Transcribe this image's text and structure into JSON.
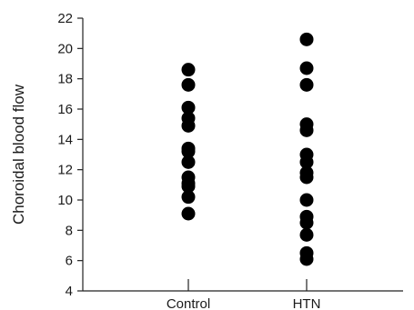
{
  "chart_data": {
    "type": "scatter",
    "title": "",
    "xlabel": "",
    "ylabel": "Choroidal blood flow",
    "categories": [
      "Control",
      "HTN"
    ],
    "ylim": [
      4,
      22
    ],
    "yticks": [
      4,
      6,
      8,
      10,
      12,
      14,
      16,
      18,
      20,
      22
    ],
    "grid": false,
    "legend": "none",
    "marker_color": "#000000",
    "series": [
      {
        "category": "Control",
        "values": [
          18.6,
          17.6,
          16.1,
          15.4,
          14.9,
          13.4,
          13.2,
          12.5,
          11.5,
          11.1,
          10.9,
          10.2,
          9.1
        ]
      },
      {
        "category": "HTN",
        "values": [
          20.6,
          18.7,
          17.6,
          15.0,
          14.6,
          13.0,
          12.5,
          11.8,
          11.5,
          10.0,
          8.9,
          8.5,
          7.7,
          6.5,
          6.1
        ]
      }
    ]
  }
}
